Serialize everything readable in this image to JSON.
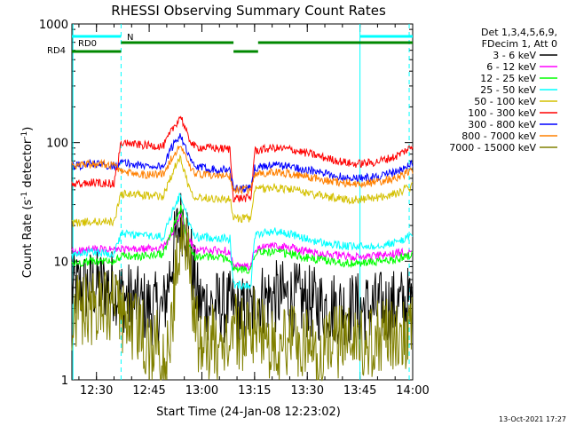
{
  "chart_data": {
    "type": "line",
    "title": "RHESSI Observing Summary Count Rates",
    "xlabel": "Start Time (24-Jan-08 12:23:02)",
    "ylabel_main": "Count Rate (s",
    "ylabel_sup1": "-1",
    "ylabel_mid": " detector",
    "ylabel_sup2": "-1",
    "ylabel_end": ")",
    "yscale": "log",
    "ylim": [
      1,
      1000
    ],
    "xlim": [
      0,
      97
    ],
    "x_unit": "minutes after 12:23:02",
    "x_ticks": [
      {
        "x": 7,
        "label": "12:30"
      },
      {
        "x": 22,
        "label": "12:45"
      },
      {
        "x": 37,
        "label": "13:00"
      },
      {
        "x": 52,
        "label": "13:15"
      },
      {
        "x": 67,
        "label": "13:30"
      },
      {
        "x": 82,
        "label": "13:45"
      },
      {
        "x": 97,
        "label": "14:00"
      }
    ],
    "y_ticks": [
      {
        "y": 1,
        "label": "1"
      },
      {
        "y": 10,
        "label": "10"
      },
      {
        "y": 100,
        "label": "100"
      },
      {
        "y": 1000,
        "label": "1000"
      }
    ],
    "legend_header": [
      "Det 1,3,4,5,6,9,",
      "FDecim 1, Att 0"
    ],
    "legend_placement": "right",
    "series": [
      {
        "name": "3 - 6 keV",
        "color": "#000000",
        "points": [
          [
            0,
            5.8
          ],
          [
            6,
            6.2
          ],
          [
            12,
            6.3
          ],
          [
            14,
            5.2
          ],
          [
            20,
            4.2
          ],
          [
            26,
            3.8
          ],
          [
            30,
            18
          ],
          [
            32,
            25
          ],
          [
            34,
            10
          ],
          [
            36,
            4.5
          ],
          [
            40,
            4.2
          ],
          [
            46,
            4.0
          ],
          [
            46.5,
            3.6
          ],
          [
            52,
            3.8
          ],
          [
            53,
            4.8
          ],
          [
            60,
            5.0
          ],
          [
            66,
            4.6
          ],
          [
            72,
            4.2
          ],
          [
            78,
            4.0
          ],
          [
            84,
            4.0
          ],
          [
            90,
            4.1
          ],
          [
            95,
            4.4
          ],
          [
            97,
            4.6
          ]
        ]
      },
      {
        "name": "6 - 12 keV",
        "color": "#ff00ff",
        "points": [
          [
            0,
            12
          ],
          [
            6,
            12.5
          ],
          [
            12,
            12.5
          ],
          [
            14,
            12.5
          ],
          [
            20,
            12.6
          ],
          [
            26,
            13
          ],
          [
            29,
            18
          ],
          [
            31,
            25
          ],
          [
            33,
            16
          ],
          [
            35,
            12.5
          ],
          [
            40,
            12.3
          ],
          [
            45,
            12.2
          ],
          [
            46,
            9
          ],
          [
            51,
            9
          ],
          [
            52,
            12.5
          ],
          [
            57,
            13.5
          ],
          [
            62,
            13
          ],
          [
            68,
            12
          ],
          [
            74,
            11.3
          ],
          [
            80,
            10.8
          ],
          [
            86,
            11
          ],
          [
            92,
            11.5
          ],
          [
            97,
            12.5
          ]
        ]
      },
      {
        "name": "12 - 25 keV",
        "color": "#00ff00",
        "points": [
          [
            0,
            9.5
          ],
          [
            6,
            10
          ],
          [
            12,
            10
          ],
          [
            14,
            11
          ],
          [
            20,
            11
          ],
          [
            26,
            11.5
          ],
          [
            29,
            20
          ],
          [
            31,
            28
          ],
          [
            33,
            15
          ],
          [
            35,
            11
          ],
          [
            40,
            10.8
          ],
          [
            45,
            10.5
          ],
          [
            46,
            8.5
          ],
          [
            51,
            8.5
          ],
          [
            52,
            11.8
          ],
          [
            57,
            12
          ],
          [
            62,
            11.5
          ],
          [
            68,
            10.5
          ],
          [
            74,
            10
          ],
          [
            80,
            9.5
          ],
          [
            86,
            9.8
          ],
          [
            92,
            10.3
          ],
          [
            97,
            11.5
          ]
        ]
      },
      {
        "name": "25 - 50 keV",
        "color": "#00ffff",
        "points": [
          [
            0,
            11
          ],
          [
            6,
            12
          ],
          [
            12,
            11.5
          ],
          [
            14,
            17
          ],
          [
            20,
            16.5
          ],
          [
            26,
            16
          ],
          [
            29,
            28
          ],
          [
            31,
            37
          ],
          [
            33,
            22
          ],
          [
            35,
            16
          ],
          [
            40,
            15.8
          ],
          [
            45,
            15.5
          ],
          [
            46,
            6.3
          ],
          [
            51,
            6.3
          ],
          [
            52,
            16.5
          ],
          [
            57,
            18
          ],
          [
            62,
            17
          ],
          [
            68,
            15
          ],
          [
            74,
            13.8
          ],
          [
            80,
            13.2
          ],
          [
            86,
            13.5
          ],
          [
            92,
            14.3
          ],
          [
            97,
            16.5
          ]
        ]
      },
      {
        "name": "50 - 100 keV",
        "color": "#d4c000",
        "points": [
          [
            0,
            21
          ],
          [
            6,
            21.5
          ],
          [
            12,
            21.5
          ],
          [
            14,
            37
          ],
          [
            20,
            36
          ],
          [
            26,
            35
          ],
          [
            29,
            60
          ],
          [
            31,
            75
          ],
          [
            33,
            45
          ],
          [
            35,
            35
          ],
          [
            40,
            34
          ],
          [
            45,
            33
          ],
          [
            46,
            23
          ],
          [
            51,
            23
          ],
          [
            52,
            40
          ],
          [
            57,
            42
          ],
          [
            62,
            40.5
          ],
          [
            68,
            37
          ],
          [
            74,
            34.5
          ],
          [
            80,
            33
          ],
          [
            86,
            34
          ],
          [
            92,
            37
          ],
          [
            97,
            43
          ]
        ]
      },
      {
        "name": "100 - 300 keV",
        "color": "#ff0000",
        "points": [
          [
            0,
            44
          ],
          [
            6,
            46
          ],
          [
            12,
            45
          ],
          [
            14,
            100
          ],
          [
            20,
            95
          ],
          [
            26,
            93
          ],
          [
            29,
            135
          ],
          [
            31,
            168
          ],
          [
            33,
            112
          ],
          [
            35,
            92
          ],
          [
            40,
            90
          ],
          [
            45,
            88
          ],
          [
            46,
            34
          ],
          [
            51,
            34
          ],
          [
            52,
            85
          ],
          [
            57,
            90
          ],
          [
            62,
            88
          ],
          [
            68,
            80
          ],
          [
            74,
            72
          ],
          [
            80,
            66
          ],
          [
            86,
            68
          ],
          [
            92,
            76
          ],
          [
            97,
            93
          ]
        ]
      },
      {
        "name": "300 - 800 keV",
        "color": "#0000ff",
        "points": [
          [
            0,
            63
          ],
          [
            6,
            66
          ],
          [
            12,
            64
          ],
          [
            14,
            68
          ],
          [
            20,
            64
          ],
          [
            26,
            63
          ],
          [
            29,
            98
          ],
          [
            31,
            118
          ],
          [
            33,
            78
          ],
          [
            35,
            62
          ],
          [
            40,
            60
          ],
          [
            45,
            59
          ],
          [
            46,
            41
          ],
          [
            51,
            41
          ],
          [
            52,
            61
          ],
          [
            57,
            65
          ],
          [
            62,
            63
          ],
          [
            68,
            58
          ],
          [
            74,
            53
          ],
          [
            80,
            50
          ],
          [
            86,
            51
          ],
          [
            92,
            56
          ],
          [
            97,
            66
          ]
        ]
      },
      {
        "name": "800 - 7000 keV",
        "color": "#ff8000",
        "points": [
          [
            0,
            64
          ],
          [
            6,
            66
          ],
          [
            12,
            65
          ],
          [
            14,
            57
          ],
          [
            20,
            54
          ],
          [
            26,
            54
          ],
          [
            29,
            80
          ],
          [
            31,
            95
          ],
          [
            33,
            66
          ],
          [
            35,
            54
          ],
          [
            40,
            53
          ],
          [
            45,
            52
          ],
          [
            46,
            40
          ],
          [
            51,
            40
          ],
          [
            52,
            54
          ],
          [
            57,
            56
          ],
          [
            62,
            55
          ],
          [
            68,
            51
          ],
          [
            74,
            47
          ],
          [
            80,
            45
          ],
          [
            86,
            46
          ],
          [
            92,
            50
          ],
          [
            97,
            58
          ]
        ]
      },
      {
        "name": "7000 - 15000 keV",
        "color": "#808000",
        "points": [
          [
            0,
            3.6
          ],
          [
            6,
            4.0
          ],
          [
            12,
            4.1
          ],
          [
            14,
            3.2
          ],
          [
            20,
            2.5
          ],
          [
            22,
            1.6
          ],
          [
            24,
            2.2
          ],
          [
            26,
            1.3
          ],
          [
            28,
            1.8
          ],
          [
            30,
            13
          ],
          [
            32,
            20
          ],
          [
            34,
            6
          ],
          [
            36,
            2.3
          ],
          [
            38,
            1.8
          ],
          [
            40,
            2.3
          ],
          [
            43,
            1.5
          ],
          [
            46,
            2.6
          ],
          [
            50,
            2.4
          ],
          [
            52,
            3.0
          ],
          [
            56,
            2.2
          ],
          [
            58,
            1.7
          ],
          [
            62,
            2.3
          ],
          [
            66,
            2.1
          ],
          [
            70,
            1.6
          ],
          [
            74,
            2.0
          ],
          [
            78,
            2.2
          ],
          [
            82,
            2.0
          ],
          [
            88,
            2.3
          ],
          [
            94,
            2.4
          ],
          [
            97,
            2.6
          ]
        ]
      }
    ],
    "vertical_lines": [
      {
        "x": 14,
        "style": "dashed",
        "color": "#00ffff"
      },
      {
        "x": 82,
        "style": "solid",
        "color": "#00ffff"
      },
      {
        "x": 96,
        "style": "dashed",
        "color": "#00ffff"
      },
      {
        "x": 0.3,
        "style": "solid",
        "color": "#00ffff"
      }
    ],
    "annotations": [
      {
        "label": "RD0",
        "color": "#008800"
      },
      {
        "label": "RD4",
        "color": "#008800"
      },
      {
        "label": "N",
        "color": "#00ffff"
      }
    ],
    "status_bars": [
      {
        "name": "night",
        "color": "#00ffff",
        "segments": [
          [
            0,
            14
          ],
          [
            82,
            97
          ]
        ]
      },
      {
        "name": "rd0",
        "color": "#008800",
        "segments": [
          [
            14,
            46
          ],
          [
            53,
            97
          ]
        ]
      },
      {
        "name": "rd4",
        "color": "#008800",
        "segments": [
          [
            0,
            14
          ],
          [
            46,
            53
          ]
        ]
      }
    ],
    "timestamp": "13-Oct-2021 17:27"
  }
}
